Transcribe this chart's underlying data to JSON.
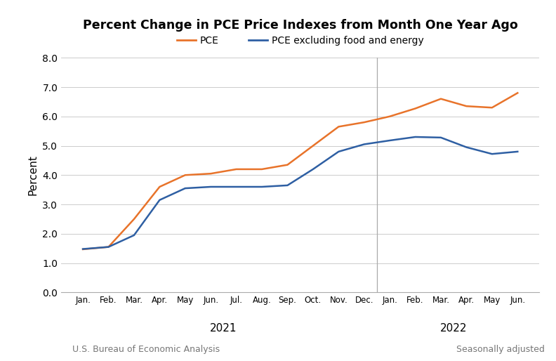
{
  "title": "Percent Change in PCE Price Indexes from Month One Year Ago",
  "ylabel": "Percent",
  "xlabel_2021": "2021",
  "xlabel_2022": "2022",
  "footer_left": "U.S. Bureau of Economic Analysis",
  "footer_right": "Seasonally adjusted",
  "ylim": [
    0.0,
    8.0
  ],
  "yticks": [
    0.0,
    1.0,
    2.0,
    3.0,
    4.0,
    5.0,
    6.0,
    7.0,
    8.0
  ],
  "x_labels_2021": [
    "Jan.",
    "Feb.",
    "Mar.",
    "Apr.",
    "May",
    "Jun.",
    "Jul.",
    "Aug.",
    "Sep.",
    "Oct.",
    "Nov.",
    "Dec."
  ],
  "x_labels_2022": [
    "Jan.",
    "Feb.",
    "Mar.",
    "Apr.",
    "May",
    "Jun."
  ],
  "pce_color": "#E8732A",
  "core_pce_color": "#2E5FA3",
  "pce_values": [
    1.47,
    1.55,
    2.5,
    3.6,
    4.0,
    4.05,
    4.2,
    4.2,
    4.35,
    5.0,
    5.65,
    5.8,
    6.0,
    6.27,
    6.6,
    6.35,
    6.3,
    6.8
  ],
  "core_pce_values": [
    1.48,
    1.55,
    1.95,
    3.15,
    3.55,
    3.6,
    3.6,
    3.6,
    3.65,
    4.2,
    4.8,
    5.05,
    5.18,
    5.3,
    5.28,
    4.95,
    4.72,
    4.8
  ],
  "background_color": "#ffffff",
  "grid_color": "#cccccc",
  "legend_pce": "PCE",
  "legend_core": "PCE excluding food and energy",
  "divider_color": "#aaaaaa",
  "spine_color": "#aaaaaa"
}
